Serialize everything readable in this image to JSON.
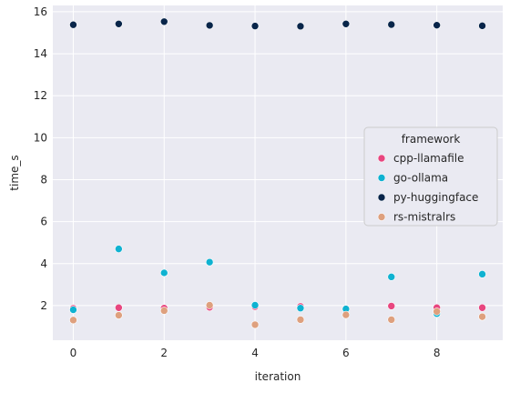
{
  "chart_data": {
    "type": "scatter",
    "xlabel": "iteration",
    "ylabel": "time_s",
    "xlim": [
      -0.45,
      9.45
    ],
    "ylim": [
      0.35,
      16.3
    ],
    "xticks": [
      0,
      2,
      4,
      6,
      8
    ],
    "yticks": [
      2,
      4,
      6,
      8,
      10,
      12,
      14,
      16
    ],
    "grid": true,
    "legend": {
      "title": "framework",
      "placement": "center-right"
    },
    "x": [
      0,
      1,
      2,
      3,
      4,
      5,
      6,
      7,
      8,
      9
    ],
    "series": [
      {
        "name": "cpp-llamafile",
        "color": "#e8467f",
        "values": [
          1.87,
          1.9,
          1.88,
          1.92,
          1.95,
          1.96,
          1.84,
          1.98,
          1.9,
          1.9
        ]
      },
      {
        "name": "go-ollama",
        "color": "#0fb2d1",
        "values": [
          1.8,
          4.7,
          3.56,
          4.07,
          2.02,
          1.88,
          1.84,
          3.37,
          1.62,
          3.5
        ]
      },
      {
        "name": "py-huggingface",
        "color": "#08254a",
        "values": [
          15.38,
          15.42,
          15.53,
          15.35,
          15.32,
          15.31,
          15.42,
          15.39,
          15.36,
          15.33
        ]
      },
      {
        "name": "rs-mistralrs",
        "color": "#dea07e",
        "values": [
          1.31,
          1.54,
          1.76,
          2.02,
          1.09,
          1.33,
          1.56,
          1.33,
          1.72,
          1.47
        ]
      }
    ]
  }
}
